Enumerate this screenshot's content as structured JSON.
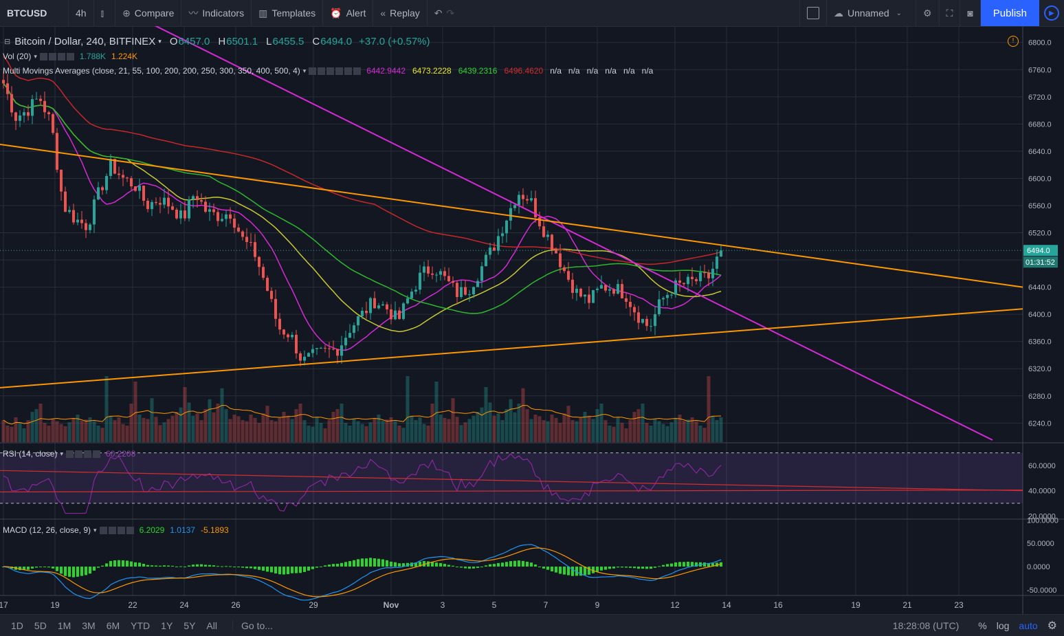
{
  "toolbar": {
    "symbol": "BTCUSD",
    "interval": "4h",
    "compare": "Compare",
    "indicators": "Indicators",
    "templates": "Templates",
    "alert": "Alert",
    "replay": "Replay",
    "layout_name": "Unnamed",
    "publish": "Publish",
    "icons": [
      "bar-style-icon",
      "compare-plus-icon",
      "indicators-icon",
      "templates-icon",
      "alert-icon",
      "replay-icon",
      "undo-icon",
      "redo-icon",
      "checkbox-icon",
      "cloud-icon",
      "chevron-down-icon",
      "gear-icon",
      "fullscreen-icon",
      "camera-icon",
      "play-icon"
    ]
  },
  "legend": {
    "title": "Bitcoin / Dollar, 240, BITFINEX",
    "o_label": "O",
    "o": "6457.0",
    "h_label": "H",
    "h": "6501.1",
    "l_label": "L",
    "l": "6455.5",
    "c_label": "C",
    "c": "6494.0",
    "change": "+37.0 (+0.57%)",
    "vol_label": "Vol (20)",
    "vol1": "1.788K",
    "vol2": "1.224K",
    "mma_label": "Multi Movings Averages (close, 21, 55, 100, 200, 200, 250, 300, 350, 400, 500, 4)",
    "mma_values": [
      {
        "v": "6442.9442",
        "color": "#d62ad6"
      },
      {
        "v": "6473.2228",
        "color": "#e8e82a"
      },
      {
        "v": "6439.2316",
        "color": "#2ad62a"
      },
      {
        "v": "6496.4620",
        "color": "#d62a2a"
      },
      {
        "v": "n/a",
        "color": "#d1d4dc"
      },
      {
        "v": "n/a",
        "color": "#d1d4dc"
      },
      {
        "v": "n/a",
        "color": "#d1d4dc"
      },
      {
        "v": "n/a",
        "color": "#d1d4dc"
      },
      {
        "v": "n/a",
        "color": "#d1d4dc"
      },
      {
        "v": "n/a",
        "color": "#d1d4dc"
      }
    ],
    "rsi_label": "RSI (14, close)",
    "rsi_value": "60.2208",
    "macd_label": "MACD (12, 26, close, 9)",
    "macd1": "6.2029",
    "macd2": "1.0137",
    "macd3": "-5.1893"
  },
  "bottom": {
    "ranges": [
      "1D",
      "5D",
      "1M",
      "3M",
      "6M",
      "YTD",
      "1Y",
      "5Y",
      "All"
    ],
    "goto": "Go to...",
    "time": "18:28:08 (UTC)",
    "percent": "%",
    "log": "log",
    "auto": "auto"
  },
  "colors": {
    "up": "#26a69a",
    "down": "#ef5350",
    "bg": "#131722",
    "grid": "#2a2e39",
    "accent": "#2962ff"
  },
  "chart_data": [
    {
      "type": "candlestick",
      "price_axis": {
        "ticks": [
          6240,
          6280,
          6320,
          6360,
          6400,
          6440,
          6480,
          6520,
          6560,
          6600,
          6640,
          6680,
          6720,
          6760,
          6800
        ],
        "labels": [
          "6240.0",
          "6280.0",
          "6320.0",
          "6360.0",
          "6400.0",
          "6440.0",
          "6520.0",
          "6560.0",
          "6600.0",
          "6640.0",
          "6680.0",
          "6720.0",
          "6760.0",
          "6800.0"
        ],
        "ylim": [
          6212,
          6822
        ]
      },
      "last_price": "6494.0",
      "countdown": "01:31:52",
      "x_axis": {
        "ticks": [
          "17",
          "19",
          "22",
          "24",
          "26",
          "29",
          "Nov",
          "3",
          "5",
          "7",
          "9",
          "12",
          "14",
          "16",
          "19",
          "21",
          "23"
        ]
      },
      "close_path": [
        6740,
        6690,
        6700,
        6720,
        6680,
        6560,
        6540,
        6530,
        6580,
        6620,
        6600,
        6590,
        6560,
        6570,
        6560,
        6540,
        6580,
        6550,
        6545,
        6550,
        6510,
        6490,
        6440,
        6380,
        6370,
        6330,
        6340,
        6345,
        6350,
        6380,
        6400,
        6420,
        6410,
        6390,
        6430,
        6460,
        6470,
        6450,
        6430,
        6440,
        6470,
        6500,
        6540,
        6580,
        6570,
        6530,
        6500,
        6460,
        6430,
        6420,
        6440,
        6440,
        6430,
        6400,
        6380,
        6420,
        6440,
        6445,
        6450,
        6455,
        6494
      ],
      "volume": [
        40,
        30,
        28,
        45,
        35,
        25,
        40,
        55,
        60,
        70,
        35,
        30,
        42,
        38,
        33,
        29,
        36,
        44,
        50,
        39,
        41,
        45,
        38,
        30,
        26,
        120,
        48,
        40,
        45,
        33,
        30,
        70,
        110,
        50,
        44,
        42,
        80,
        46,
        31,
        36,
        42,
        48,
        55,
        63,
        100,
        72,
        48,
        52,
        40,
        60,
        78,
        54,
        70,
        98,
        60,
        42,
        50,
        47,
        40,
        38,
        50,
        44,
        35,
        52,
        66,
        40,
        38,
        44,
        55,
        48,
        42,
        60,
        70
      ],
      "moving_averages": [
        {
          "name": "MA21",
          "color": "#d62ad6"
        },
        {
          "name": "MA55",
          "color": "#c8c832"
        },
        {
          "name": "MA100",
          "color": "#2eb82e"
        },
        {
          "name": "MA200",
          "color": "#c82828"
        }
      ],
      "trendlines": [
        {
          "color": "#d62ad6",
          "from": {
            "t": "17",
            "v": 6840
          },
          "to": {
            "t": "25",
            "v": 6215
          }
        },
        {
          "color": "#ff9800",
          "from": {
            "t": "16",
            "v": 6650
          },
          "to": {
            "t": "26",
            "v": 6440
          }
        },
        {
          "color": "#ff9800",
          "from": {
            "t": "16",
            "v": 6292
          },
          "to": {
            "t": "26",
            "v": 6408
          }
        }
      ]
    },
    {
      "type": "line",
      "name": "RSI (14, close)",
      "axis": {
        "ticks": [
          "60.0000",
          "40.0000",
          "20.0000"
        ],
        "ylim": [
          18,
          78
        ]
      },
      "bands": [
        30,
        70
      ],
      "last": "60.2208"
    },
    {
      "type": "bar",
      "name": "MACD (12, 26, close, 9)",
      "axis": {
        "ticks": [
          "100.0000",
          "50.0000",
          "0.0000",
          "-50.0000"
        ],
        "ylim": [
          -62,
          102
        ]
      }
    }
  ]
}
